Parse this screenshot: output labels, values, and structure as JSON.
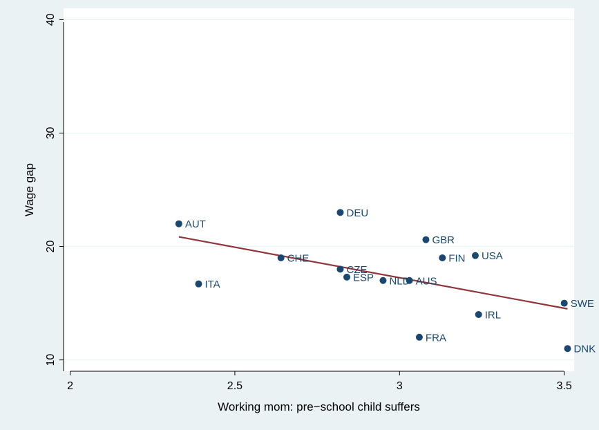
{
  "chart_data": {
    "type": "scatter",
    "xlabel": "Working mom: pre−school child suffers",
    "ylabel": "Wage gap",
    "xlim": [
      1.98,
      3.53
    ],
    "ylim": [
      9,
      41
    ],
    "xticks": [
      2,
      2.5,
      3,
      3.5
    ],
    "xtick_labels": [
      "2",
      "2.5",
      "3",
      "3.5"
    ],
    "yticks": [
      10,
      20,
      30,
      40
    ],
    "ytick_labels": [
      "10",
      "20",
      "30",
      "40"
    ],
    "grid": true,
    "legend": "none",
    "colors": {
      "points": "#1a476f",
      "fit_line": "#90353b",
      "plot_bg": "#ffffff",
      "outer_bg": "#eaf2f3",
      "grid": "#eaf2f3"
    },
    "points": [
      {
        "label": "AUT",
        "x": 2.33,
        "y": 22.0
      },
      {
        "label": "ITA",
        "x": 2.39,
        "y": 16.7
      },
      {
        "label": "CHE",
        "x": 2.64,
        "y": 19.0
      },
      {
        "label": "DEU",
        "x": 2.82,
        "y": 23.0
      },
      {
        "label": "CZE",
        "x": 2.82,
        "y": 18.0
      },
      {
        "label": "ESP",
        "x": 2.84,
        "y": 17.3
      },
      {
        "label": "NLD",
        "x": 2.95,
        "y": 17.0
      },
      {
        "label": "AUS",
        "x": 3.03,
        "y": 17.0
      },
      {
        "label": "FRA",
        "x": 3.06,
        "y": 12.0
      },
      {
        "label": "GBR",
        "x": 3.08,
        "y": 20.6
      },
      {
        "label": "FIN",
        "x": 3.13,
        "y": 19.0
      },
      {
        "label": "USA",
        "x": 3.23,
        "y": 19.2
      },
      {
        "label": "IRL",
        "x": 3.24,
        "y": 14.0
      },
      {
        "label": "SWE",
        "x": 3.5,
        "y": 15.0
      },
      {
        "label": "DNK",
        "x": 3.51,
        "y": 11.0
      }
    ],
    "fit_line": {
      "x": [
        2.33,
        3.51
      ],
      "y": [
        20.85,
        14.5
      ]
    }
  }
}
